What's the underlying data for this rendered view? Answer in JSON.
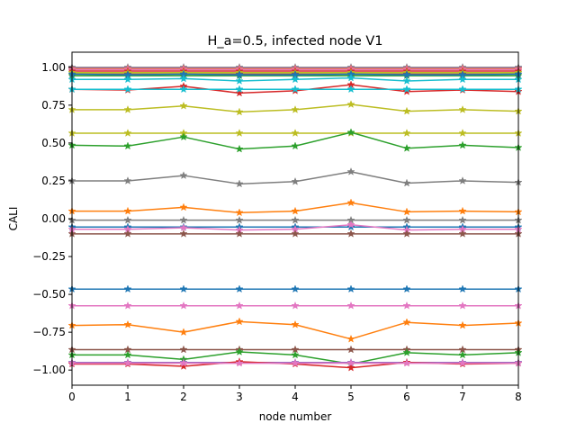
{
  "chart_data": {
    "type": "line",
    "title": "H_a=0.5, infected node V1",
    "xlabel": "node number",
    "ylabel": "CALI",
    "xlim": [
      0,
      8
    ],
    "ylim": [
      -1.1,
      1.1
    ],
    "xticks": [
      0,
      1,
      2,
      3,
      4,
      5,
      6,
      7,
      8
    ],
    "yticks": [
      -1.0,
      -0.75,
      -0.5,
      -0.25,
      0.0,
      0.25,
      0.5,
      0.75,
      1.0
    ],
    "ytick_labels": [
      "−1.00",
      "−0.75",
      "−0.50",
      "−0.25",
      "0.00",
      "0.25",
      "0.50",
      "0.75",
      "1.00"
    ],
    "grid": false,
    "marker": "star",
    "x": [
      0,
      1,
      2,
      3,
      4,
      5,
      6,
      7,
      8
    ],
    "series": [
      {
        "color": "#7f7f7f",
        "values": [
          1.0,
          1.0,
          1.0,
          1.0,
          1.0,
          1.0,
          1.0,
          1.0,
          1.0
        ]
      },
      {
        "color": "#9467bd",
        "values": [
          0.995,
          0.995,
          0.995,
          0.995,
          0.995,
          0.995,
          0.995,
          0.995,
          0.995
        ]
      },
      {
        "color": "#ff7f0e",
        "values": [
          0.99,
          0.99,
          0.99,
          0.99,
          0.99,
          0.99,
          0.99,
          0.99,
          0.99
        ]
      },
      {
        "color": "#e377c2",
        "values": [
          0.985,
          0.985,
          0.985,
          0.985,
          0.985,
          0.985,
          0.985,
          0.985,
          0.985
        ]
      },
      {
        "color": "#d62728",
        "values": [
          0.975,
          0.975,
          0.975,
          0.975,
          0.975,
          0.975,
          0.975,
          0.975,
          0.975
        ]
      },
      {
        "color": "#bcbd22",
        "values": [
          0.965,
          0.965,
          0.965,
          0.965,
          0.965,
          0.965,
          0.965,
          0.965,
          0.965
        ]
      },
      {
        "color": "#8c564b",
        "values": [
          0.955,
          0.955,
          0.955,
          0.955,
          0.955,
          0.955,
          0.955,
          0.955,
          0.955
        ]
      },
      {
        "color": "#2ca02c",
        "values": [
          0.945,
          0.945,
          0.945,
          0.945,
          0.945,
          0.945,
          0.945,
          0.945,
          0.945
        ]
      },
      {
        "color": "#1f77b4",
        "values": [
          0.955,
          0.95,
          0.955,
          0.95,
          0.95,
          0.955,
          0.95,
          0.95,
          0.955
        ]
      },
      {
        "color": "#17becf",
        "values": [
          0.92,
          0.92,
          0.925,
          0.91,
          0.92,
          0.93,
          0.91,
          0.92,
          0.92
        ]
      },
      {
        "color": "#d62728",
        "values": [
          0.855,
          0.85,
          0.875,
          0.83,
          0.845,
          0.885,
          0.84,
          0.85,
          0.84
        ]
      },
      {
        "color": "#17becf",
        "values": [
          0.855,
          0.855,
          0.855,
          0.855,
          0.855,
          0.855,
          0.855,
          0.855,
          0.855
        ]
      },
      {
        "color": "#bcbd22",
        "values": [
          0.72,
          0.72,
          0.745,
          0.705,
          0.72,
          0.755,
          0.71,
          0.72,
          0.71
        ]
      },
      {
        "color": "#bcbd22",
        "values": [
          0.565,
          0.565,
          0.565,
          0.565,
          0.565,
          0.565,
          0.565,
          0.565,
          0.565
        ]
      },
      {
        "color": "#2ca02c",
        "values": [
          0.485,
          0.48,
          0.54,
          0.46,
          0.48,
          0.57,
          0.465,
          0.485,
          0.47
        ]
      },
      {
        "color": "#7f7f7f",
        "values": [
          0.25,
          0.25,
          0.285,
          0.23,
          0.245,
          0.31,
          0.235,
          0.25,
          0.24
        ]
      },
      {
        "color": "#ff7f0e",
        "values": [
          0.05,
          0.05,
          0.075,
          0.04,
          0.05,
          0.105,
          0.045,
          0.05,
          0.045
        ]
      },
      {
        "color": "#7f7f7f",
        "values": [
          -0.01,
          -0.01,
          -0.01,
          -0.01,
          -0.01,
          -0.01,
          -0.01,
          -0.01,
          -0.01
        ]
      },
      {
        "color": "#1f77b4",
        "values": [
          -0.055,
          -0.055,
          -0.055,
          -0.055,
          -0.055,
          -0.055,
          -0.055,
          -0.055,
          -0.055
        ]
      },
      {
        "color": "#e377c2",
        "values": [
          -0.07,
          -0.07,
          -0.06,
          -0.075,
          -0.07,
          -0.04,
          -0.075,
          -0.07,
          -0.07
        ]
      },
      {
        "color": "#8c564b",
        "values": [
          -0.1,
          -0.1,
          -0.1,
          -0.1,
          -0.1,
          -0.1,
          -0.1,
          -0.1,
          -0.1
        ]
      },
      {
        "color": "#1f77b4",
        "values": [
          -0.465,
          -0.465,
          -0.465,
          -0.465,
          -0.465,
          -0.465,
          -0.465,
          -0.465,
          -0.465
        ]
      },
      {
        "color": "#e377c2",
        "values": [
          -0.575,
          -0.575,
          -0.575,
          -0.575,
          -0.575,
          -0.575,
          -0.575,
          -0.575,
          -0.575
        ]
      },
      {
        "color": "#ff7f0e",
        "values": [
          -0.705,
          -0.7,
          -0.75,
          -0.68,
          -0.7,
          -0.795,
          -0.685,
          -0.705,
          -0.69
        ]
      },
      {
        "color": "#8c564b",
        "values": [
          -0.865,
          -0.865,
          -0.865,
          -0.865,
          -0.865,
          -0.865,
          -0.865,
          -0.865,
          -0.865
        ]
      },
      {
        "color": "#2ca02c",
        "values": [
          -0.9,
          -0.9,
          -0.93,
          -0.88,
          -0.9,
          -0.96,
          -0.885,
          -0.9,
          -0.885
        ]
      },
      {
        "color": "#9467bd",
        "values": [
          -0.95,
          -0.95,
          -0.95,
          -0.95,
          -0.95,
          -0.95,
          -0.95,
          -0.95,
          -0.95
        ]
      },
      {
        "color": "#d62728",
        "values": [
          -0.96,
          -0.96,
          -0.975,
          -0.945,
          -0.96,
          -0.985,
          -0.95,
          -0.96,
          -0.955
        ]
      },
      {
        "color": "#e377c2",
        "values": [
          -0.955,
          -0.955,
          -0.955,
          -0.955,
          -0.955,
          -0.955,
          -0.955,
          -0.955,
          -0.955
        ]
      }
    ]
  }
}
